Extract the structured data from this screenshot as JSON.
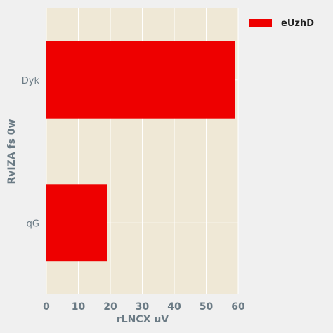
{
  "chart_data": {
    "type": "bar",
    "orientation": "horizontal",
    "categories": [
      "Dyk",
      "qG"
    ],
    "series": [
      {
        "name": "eUzhD",
        "values": [
          59,
          19
        ],
        "color": "#ee0000"
      }
    ],
    "xlabel": "rLNCX  uV",
    "ylabel": "RvIZA  fs 0w",
    "xlim": [
      0,
      60
    ],
    "xticks": [
      0,
      10,
      20,
      30,
      40,
      50,
      60
    ],
    "grid": true,
    "legend_position": "top-right",
    "plot_background": "#efe8d6",
    "grid_color": "#ffffff",
    "page_background": "#f0f0f0",
    "text_color": "#6a7a84"
  }
}
